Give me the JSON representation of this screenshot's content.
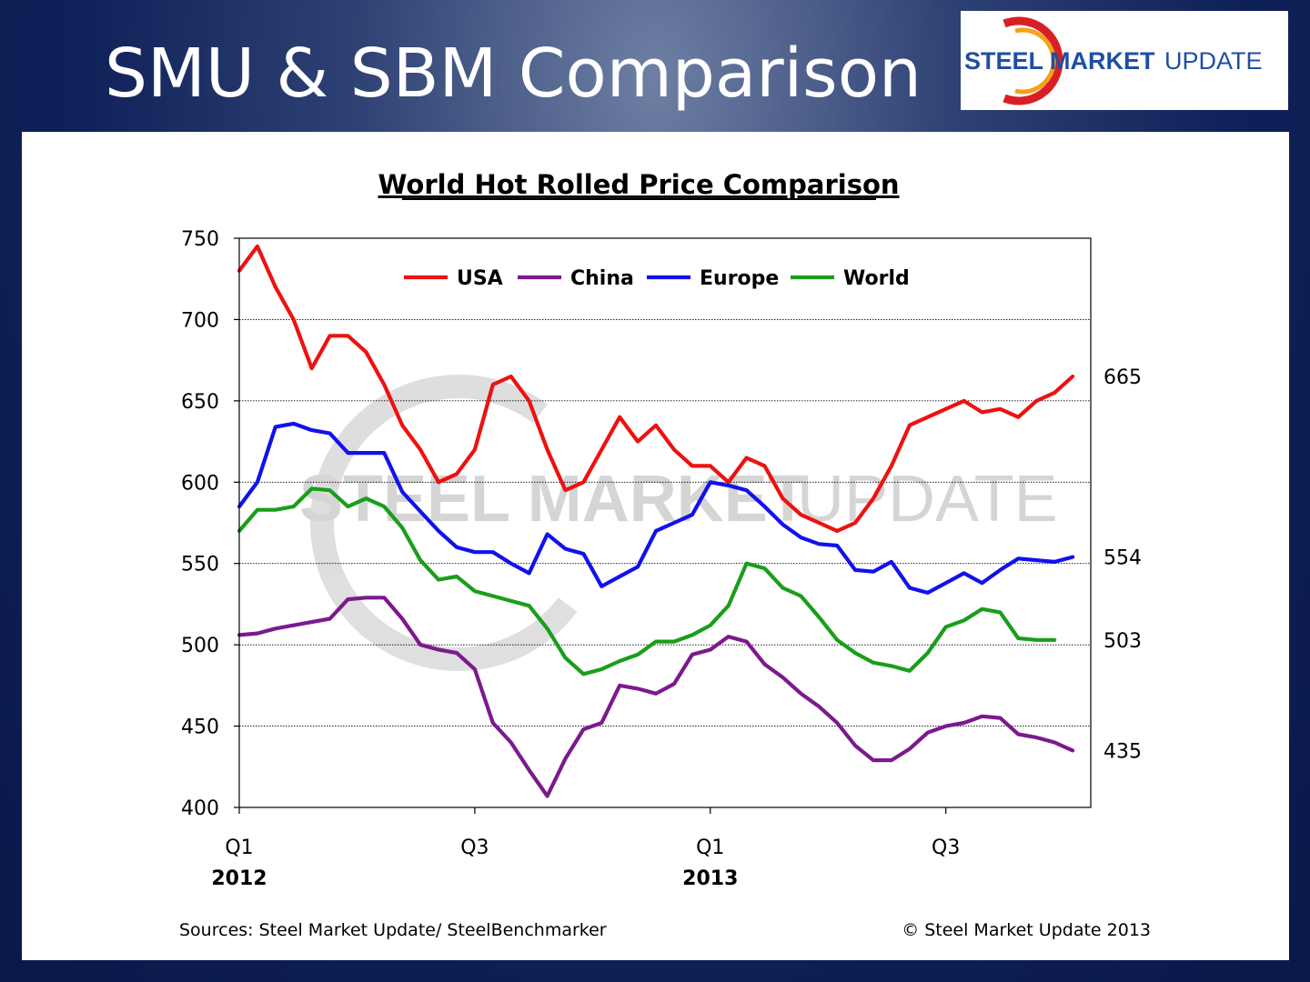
{
  "slide": {
    "title": "SMU & SBM Comparison"
  },
  "logo": {
    "text_bold": "STEEL MARKET",
    "text_light": "UPDATE",
    "colors": {
      "blue": "#1f4fa3",
      "red": "#d81f26",
      "orange": "#f3a21a"
    }
  },
  "watermark": {
    "text_bold": "STEEL MARKET",
    "text_light": "UPDATE"
  },
  "footer": {
    "sources": "Sources: Steel Market Update/ SteelBenchmarker",
    "copyright": "© Steel Market Update 2013"
  },
  "chart_data": {
    "type": "line",
    "title": "World Hot Rolled Price Comparison",
    "xlabel": "",
    "ylabel": "",
    "ylim": [
      400,
      750
    ],
    "yticks": [
      400,
      450,
      500,
      550,
      600,
      650,
      700,
      750
    ],
    "grid": true,
    "legend_position": "top-center",
    "n_points": 48,
    "x_ticks": [
      {
        "index": 0,
        "label": "Q1",
        "year": "2012"
      },
      {
        "index": 13,
        "label": "Q3",
        "year": ""
      },
      {
        "index": 26,
        "label": "Q1",
        "year": "2013"
      },
      {
        "index": 39,
        "label": "Q3",
        "year": ""
      }
    ],
    "series": [
      {
        "name": "USA",
        "color": "#ee1111",
        "end_label": "665",
        "values": [
          730,
          745,
          720,
          700,
          670,
          690,
          690,
          680,
          660,
          635,
          620,
          600,
          605,
          620,
          660,
          665,
          650,
          620,
          595,
          600,
          620,
          640,
          625,
          635,
          620,
          610,
          610,
          600,
          615,
          610,
          590,
          580,
          575,
          570,
          575,
          590,
          610,
          635,
          640,
          645,
          650,
          643,
          645,
          640,
          650,
          655,
          665
        ]
      },
      {
        "name": "China",
        "color": "#7b1a8c",
        "end_label": "435",
        "values": [
          506,
          507,
          510,
          512,
          514,
          516,
          528,
          529,
          529,
          516,
          500,
          497,
          495,
          485,
          452,
          440,
          423,
          407,
          430,
          448,
          452,
          475,
          473,
          470,
          476,
          494,
          497,
          505,
          502,
          488,
          480,
          470,
          462,
          452,
          438,
          429,
          429,
          436,
          446,
          450,
          452,
          456,
          455,
          445,
          443,
          440,
          435
        ]
      },
      {
        "name": "Europe",
        "color": "#1111ee",
        "end_label": "554",
        "values": [
          585,
          600,
          634,
          636,
          632,
          630,
          618,
          618,
          618,
          594,
          582,
          570,
          560,
          557,
          557,
          550,
          544,
          568,
          559,
          556,
          536,
          542,
          548,
          570,
          575,
          580,
          600,
          598,
          595,
          585,
          574,
          566,
          562,
          561,
          546,
          545,
          551,
          535,
          532,
          538,
          544,
          538,
          546,
          553,
          552,
          551,
          554
        ]
      },
      {
        "name": "World",
        "color": "#1a9e1a",
        "end_label": "503",
        "values": [
          570,
          583,
          583,
          585,
          596,
          595,
          585,
          590,
          585,
          572,
          552,
          540,
          542,
          533,
          530,
          527,
          524,
          510,
          492,
          482,
          485,
          490,
          494,
          502,
          502,
          506,
          512,
          524,
          550,
          547,
          535,
          530,
          517,
          503,
          495,
          489,
          487,
          484,
          495,
          511,
          515,
          522,
          520,
          504,
          503,
          503
        ]
      }
    ]
  }
}
